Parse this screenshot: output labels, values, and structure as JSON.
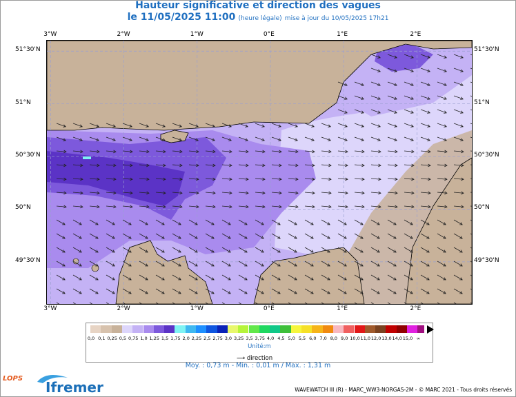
{
  "title": {
    "line1": "Hauteur significative et direction des vagues",
    "date": "le 11/05/2025 11:00",
    "legal": "(heure légale)",
    "update": "mise à jour du 10/05/2025 17h21"
  },
  "map": {
    "lon_ticks_top": [
      "3°W",
      "2°W",
      "1°W",
      "0°E",
      "1°E",
      "2°E"
    ],
    "lon_ticks_bottom": [
      "3°W",
      "2°W",
      "1°W",
      "0°E",
      "1°E",
      "2°E"
    ],
    "lat_ticks_left": [
      "51°30'N",
      "51°N",
      "50°30'N",
      "50°N",
      "49°30'N"
    ],
    "lat_ticks_right": [
      "51°30'N",
      "51°N",
      "50°30'N",
      "50°N",
      "49°30'N"
    ],
    "lon_values": [
      -3,
      -2,
      -1,
      0,
      1,
      2
    ],
    "lat_values": [
      51.5,
      51.0,
      50.5,
      50.0,
      49.5
    ],
    "extent": {
      "lon_min": -3.05,
      "lon_max": 2.75,
      "lat_min": 49.1,
      "lat_max": 51.6
    },
    "grid": true,
    "colors": {
      "land": "#c8b29a",
      "sea_025": "#ddd6fb",
      "sea_050": "#c4b2f5",
      "sea_075": "#a98bee",
      "sea_100": "#7d59dc",
      "sea_125": "#5b33c6",
      "grid": "#9aa0d0"
    }
  },
  "legend": {
    "levels": [
      "0,0",
      "0,1",
      "0,25",
      "0,5",
      "0,75",
      "1,0",
      "1,25",
      "1,5",
      "1,75",
      "2,0",
      "2,25",
      "2,5",
      "2,75",
      "3,0",
      "3,25",
      "3,5",
      "3,75",
      "4,0",
      "4,5",
      "5,0",
      "5,5",
      "6,0",
      "7,0",
      "8,0",
      "9,0",
      "10,0",
      "11,0",
      "12,0",
      "13,0",
      "14,0",
      "15,0",
      "∞"
    ],
    "colors": [
      "#e7d4c4",
      "#d7c2ad",
      "#c8b29a",
      "#ddd6fb",
      "#c4b2f5",
      "#a98bee",
      "#7d59dc",
      "#5b33c6",
      "#7ff3f3",
      "#3fb8f0",
      "#1e90ff",
      "#0f56e0",
      "#0a23b8",
      "#e8f86c",
      "#b6f43a",
      "#62e84a",
      "#20d860",
      "#10c888",
      "#3ec03a",
      "#f6f63c",
      "#f6e028",
      "#f6b418",
      "#f08a10",
      "#f8b8c0",
      "#f06060",
      "#e21818",
      "#a05a2c",
      "#7a4220",
      "#c00000",
      "#900000",
      "#e020e0",
      "#a01080"
    ],
    "unit": "Unité:m",
    "direction_label": "direction"
  },
  "stats": "Moy. : 0,73 m   -   Min. : 0,01 m / Max. : 1,31 m",
  "credit": "WAVEWATCH III (R) - MARC_WW3-NORGAS-2M - © MARC 2021 - Tous droits réservés",
  "logos": {
    "lops": "LOPS",
    "ifremer": "Ifremer"
  }
}
